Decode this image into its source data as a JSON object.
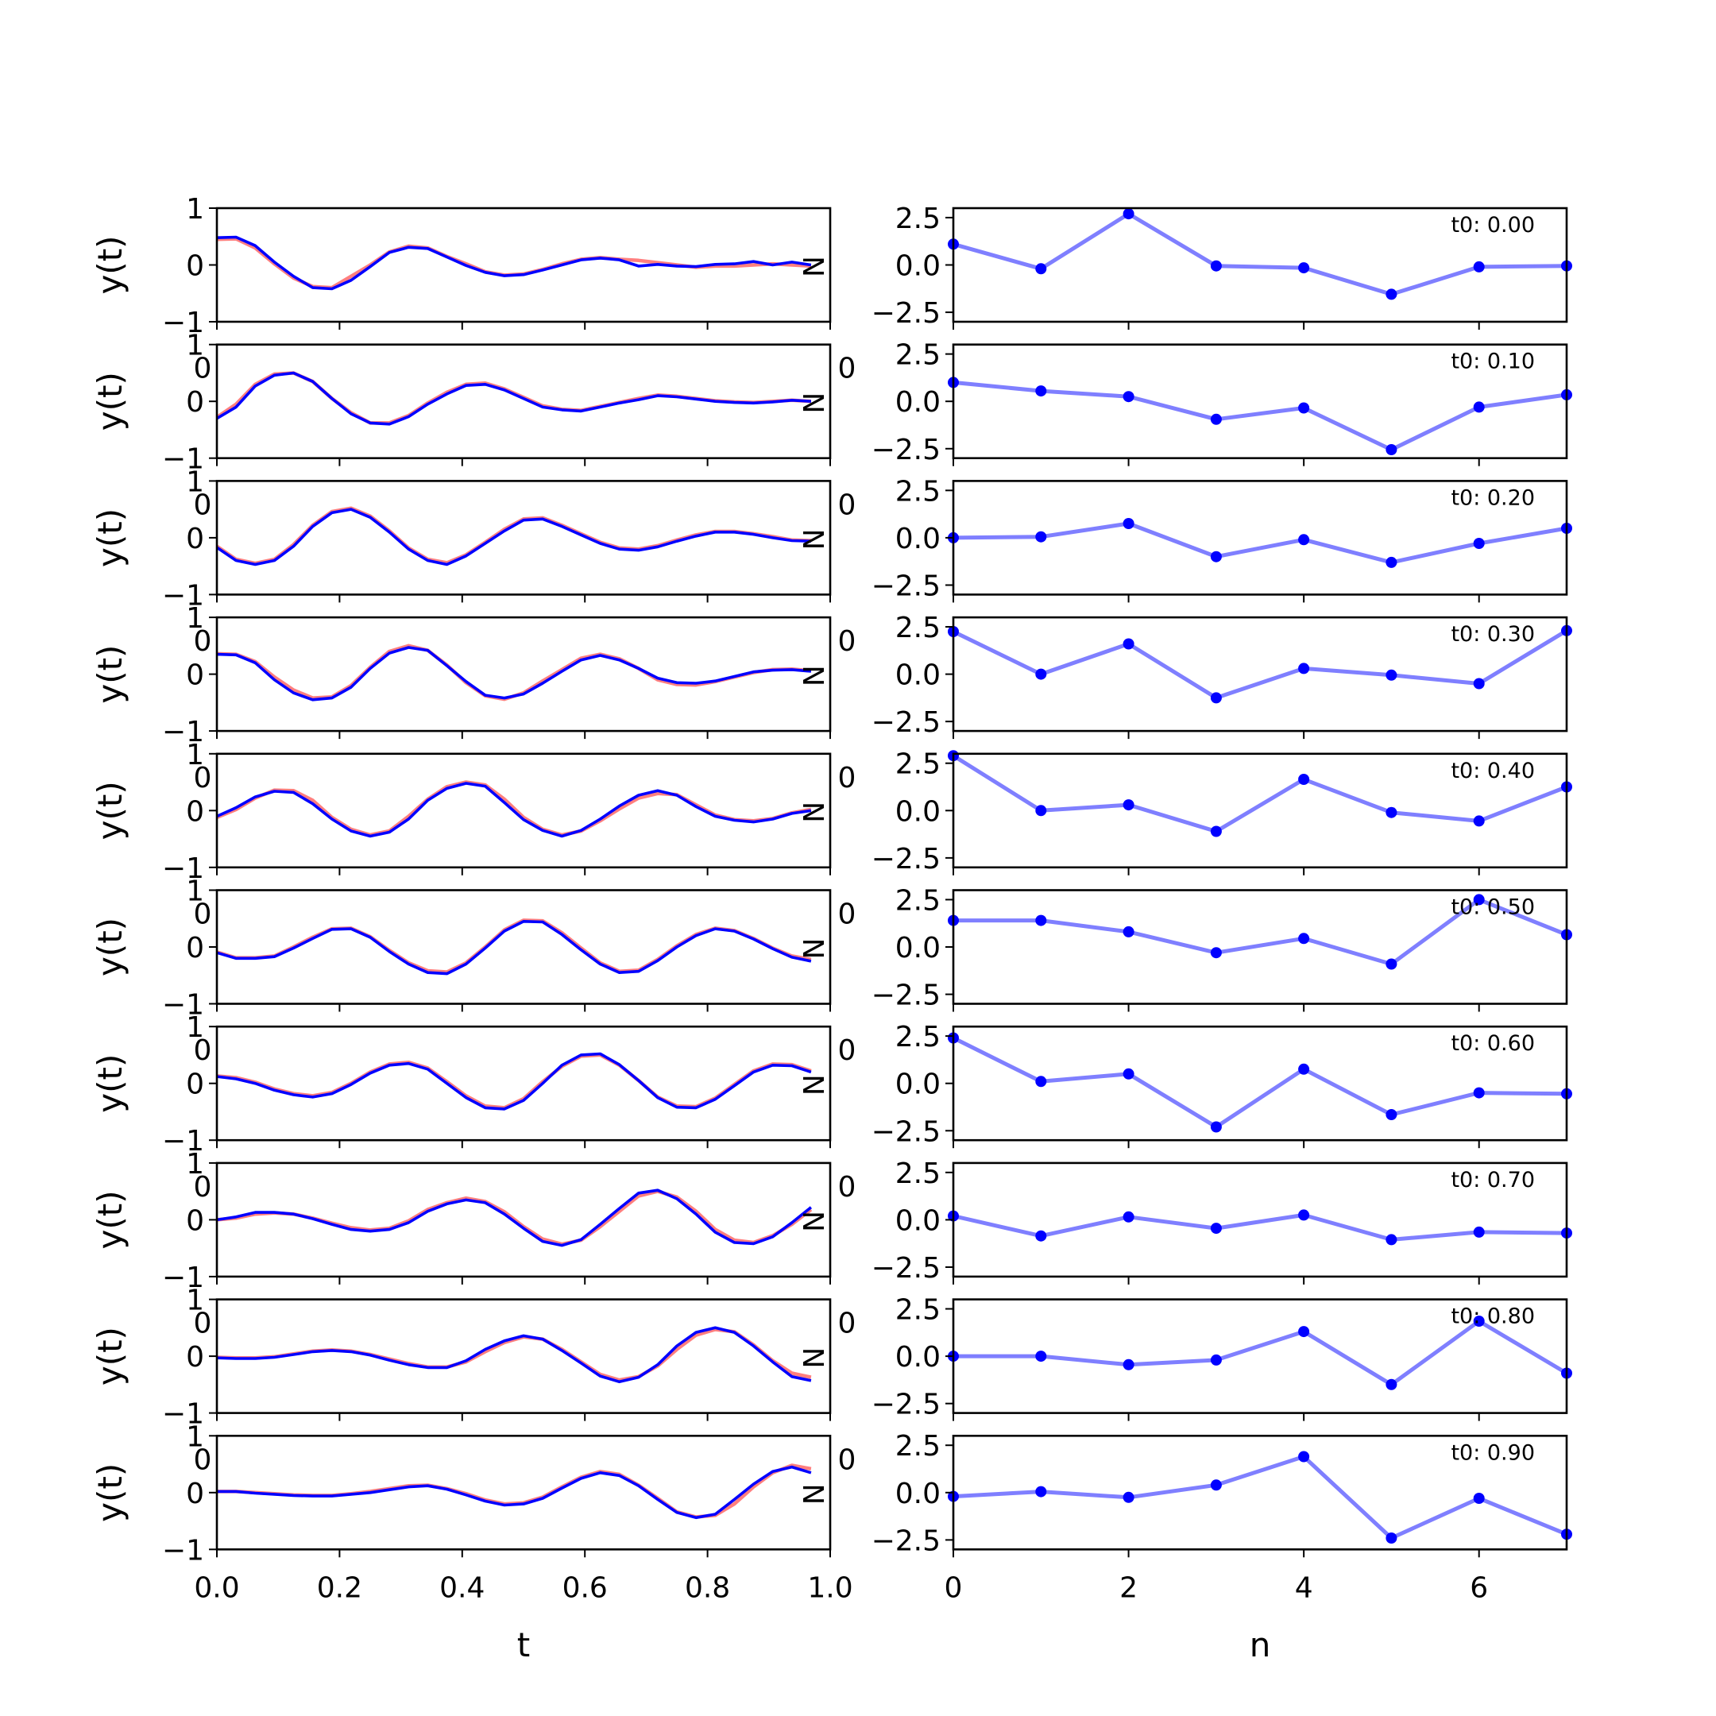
{
  "chart_data": {
    "type": "line",
    "rows": 10,
    "left": {
      "xlabel": "t",
      "ylabel": "y(t)",
      "xlim": [
        0,
        1
      ],
      "ylim": [
        -1,
        1
      ],
      "xticks": [
        "0.0",
        "0.2",
        "0.4",
        "0.6",
        "0.8",
        "1.0"
      ],
      "yticks": [
        "1",
        "0",
        "−1"
      ],
      "stray_tick_label": "0",
      "right_marker": "N",
      "t": [
        0.0,
        0.03125,
        0.0625,
        0.09375,
        0.125,
        0.15625,
        0.1875,
        0.21875,
        0.25,
        0.28125,
        0.3125,
        0.34375,
        0.375,
        0.40625,
        0.4375,
        0.46875,
        0.5,
        0.53125,
        0.5625,
        0.59375,
        0.625,
        0.65625,
        0.6875,
        0.71875,
        0.75,
        0.78125,
        0.8125,
        0.84375,
        0.875,
        0.90625,
        0.9375,
        0.96875
      ],
      "series": [
        {
          "blue": [
            0.48,
            0.49,
            0.34,
            0.05,
            -0.2,
            -0.4,
            -0.42,
            -0.27,
            -0.03,
            0.22,
            0.31,
            0.29,
            0.14,
            -0.01,
            -0.13,
            -0.19,
            -0.17,
            -0.09,
            0.0,
            0.09,
            0.12,
            0.09,
            -0.02,
            0.01,
            -0.02,
            -0.03,
            0.01,
            0.02,
            0.06,
            0.0,
            0.05,
            0.0
          ],
          "red": [
            0.45,
            0.46,
            0.3,
            0.02,
            -0.23,
            -0.38,
            -0.4,
            -0.2,
            0.0,
            0.23,
            0.33,
            0.3,
            0.15,
            0.02,
            -0.12,
            -0.18,
            -0.16,
            -0.08,
            0.02,
            0.1,
            0.13,
            0.1,
            0.08,
            0.04,
            0.0,
            -0.04,
            -0.02,
            -0.02,
            0.0,
            0.02,
            0.0,
            -0.02
          ]
        },
        {
          "blue": [
            -0.3,
            -0.1,
            0.27,
            0.46,
            0.5,
            0.35,
            0.05,
            -0.22,
            -0.38,
            -0.4,
            -0.27,
            -0.05,
            0.13,
            0.28,
            0.3,
            0.2,
            0.05,
            -0.1,
            -0.15,
            -0.17,
            -0.1,
            -0.03,
            0.03,
            0.1,
            0.08,
            0.04,
            0.0,
            -0.02,
            -0.03,
            -0.01,
            0.02,
            0.0
          ],
          "red": [
            -0.28,
            -0.05,
            0.3,
            0.48,
            0.5,
            0.35,
            0.05,
            -0.2,
            -0.38,
            -0.38,
            -0.25,
            -0.03,
            0.16,
            0.3,
            0.32,
            0.22,
            0.07,
            -0.08,
            -0.14,
            -0.16,
            -0.09,
            -0.02,
            0.05,
            0.11,
            0.09,
            0.05,
            0.01,
            -0.01,
            -0.02,
            0.0,
            0.02,
            0.0
          ]
        },
        {
          "blue": [
            -0.17,
            -0.4,
            -0.47,
            -0.4,
            -0.15,
            0.2,
            0.44,
            0.5,
            0.36,
            0.1,
            -0.2,
            -0.4,
            -0.47,
            -0.32,
            -0.1,
            0.12,
            0.31,
            0.33,
            0.2,
            0.05,
            -0.1,
            -0.2,
            -0.22,
            -0.16,
            -0.06,
            0.03,
            0.1,
            0.1,
            0.06,
            0.0,
            -0.05,
            -0.06
          ],
          "red": [
            -0.15,
            -0.38,
            -0.45,
            -0.38,
            -0.12,
            0.22,
            0.46,
            0.52,
            0.38,
            0.12,
            -0.18,
            -0.38,
            -0.44,
            -0.3,
            -0.08,
            0.15,
            0.33,
            0.35,
            0.22,
            0.07,
            -0.08,
            -0.18,
            -0.2,
            -0.14,
            -0.04,
            0.05,
            0.11,
            0.11,
            0.07,
            0.02,
            -0.04,
            -0.05
          ]
        },
        {
          "blue": [
            0.35,
            0.34,
            0.2,
            -0.1,
            -0.33,
            -0.45,
            -0.42,
            -0.23,
            0.1,
            0.37,
            0.47,
            0.42,
            0.15,
            -0.13,
            -0.37,
            -0.42,
            -0.35,
            -0.16,
            0.05,
            0.25,
            0.33,
            0.25,
            0.1,
            -0.07,
            -0.15,
            -0.16,
            -0.12,
            -0.04,
            0.04,
            0.07,
            0.08,
            0.05
          ],
          "red": [
            0.36,
            0.35,
            0.22,
            -0.05,
            -0.28,
            -0.42,
            -0.4,
            -0.2,
            0.12,
            0.4,
            0.5,
            0.42,
            0.16,
            -0.15,
            -0.38,
            -0.44,
            -0.33,
            -0.12,
            0.08,
            0.28,
            0.35,
            0.27,
            0.1,
            -0.1,
            -0.18,
            -0.19,
            -0.13,
            -0.05,
            0.03,
            0.08,
            0.09,
            0.06
          ]
        },
        {
          "blue": [
            -0.1,
            0.05,
            0.24,
            0.34,
            0.32,
            0.12,
            -0.15,
            -0.36,
            -0.45,
            -0.38,
            -0.15,
            0.18,
            0.39,
            0.48,
            0.43,
            0.14,
            -0.16,
            -0.35,
            -0.45,
            -0.35,
            -0.15,
            0.08,
            0.27,
            0.35,
            0.27,
            0.07,
            -0.1,
            -0.17,
            -0.2,
            -0.15,
            -0.05,
            0.0
          ],
          "red": [
            -0.12,
            0.02,
            0.22,
            0.36,
            0.35,
            0.18,
            -0.12,
            -0.33,
            -0.43,
            -0.36,
            -0.1,
            0.2,
            0.42,
            0.5,
            0.45,
            0.2,
            -0.12,
            -0.33,
            -0.43,
            -0.36,
            -0.18,
            0.03,
            0.22,
            0.3,
            0.28,
            0.1,
            -0.08,
            -0.16,
            -0.18,
            -0.14,
            -0.04,
            0.02
          ]
        },
        {
          "blue": [
            -0.1,
            -0.2,
            -0.2,
            -0.17,
            -0.02,
            0.15,
            0.31,
            0.32,
            0.17,
            -0.08,
            -0.3,
            -0.45,
            -0.47,
            -0.3,
            -0.02,
            0.28,
            0.45,
            0.44,
            0.22,
            -0.05,
            -0.3,
            -0.45,
            -0.43,
            -0.24,
            0.0,
            0.2,
            0.32,
            0.28,
            0.14,
            -0.03,
            -0.18,
            -0.25
          ],
          "red": [
            -0.09,
            -0.19,
            -0.19,
            -0.16,
            0.0,
            0.17,
            0.32,
            0.33,
            0.18,
            -0.06,
            -0.28,
            -0.42,
            -0.44,
            -0.28,
            0.0,
            0.3,
            0.47,
            0.46,
            0.25,
            -0.02,
            -0.28,
            -0.43,
            -0.41,
            -0.22,
            0.02,
            0.22,
            0.33,
            0.29,
            0.15,
            -0.02,
            -0.16,
            -0.22
          ]
        },
        {
          "blue": [
            0.12,
            0.08,
            0.0,
            -0.12,
            -0.2,
            -0.24,
            -0.18,
            -0.02,
            0.18,
            0.32,
            0.35,
            0.25,
            0.0,
            -0.25,
            -0.43,
            -0.45,
            -0.3,
            0.0,
            0.32,
            0.5,
            0.52,
            0.33,
            0.05,
            -0.25,
            -0.42,
            -0.43,
            -0.28,
            -0.04,
            0.2,
            0.32,
            0.31,
            0.2
          ],
          "red": [
            0.13,
            0.1,
            0.02,
            -0.1,
            -0.18,
            -0.22,
            -0.16,
            0.0,
            0.2,
            0.34,
            0.37,
            0.27,
            0.03,
            -0.22,
            -0.4,
            -0.43,
            -0.27,
            0.03,
            0.3,
            0.48,
            0.5,
            0.32,
            0.05,
            -0.24,
            -0.4,
            -0.41,
            -0.26,
            -0.02,
            0.22,
            0.34,
            0.33,
            0.22
          ]
        },
        {
          "blue": [
            0.0,
            0.05,
            0.13,
            0.13,
            0.1,
            0.02,
            -0.08,
            -0.17,
            -0.2,
            -0.17,
            -0.05,
            0.15,
            0.28,
            0.35,
            0.3,
            0.1,
            -0.15,
            -0.38,
            -0.45,
            -0.35,
            -0.08,
            0.2,
            0.47,
            0.52,
            0.37,
            0.1,
            -0.22,
            -0.4,
            -0.42,
            -0.3,
            -0.05,
            0.22
          ],
          "red": [
            0.0,
            0.03,
            0.1,
            0.12,
            0.1,
            0.03,
            -0.06,
            -0.14,
            -0.18,
            -0.15,
            -0.02,
            0.18,
            0.3,
            0.38,
            0.32,
            0.14,
            -0.12,
            -0.34,
            -0.43,
            -0.36,
            -0.12,
            0.15,
            0.42,
            0.5,
            0.4,
            0.15,
            -0.17,
            -0.36,
            -0.4,
            -0.28,
            -0.08,
            0.18
          ]
        },
        {
          "blue": [
            -0.03,
            -0.04,
            -0.04,
            -0.02,
            0.03,
            0.08,
            0.1,
            0.08,
            0.02,
            -0.07,
            -0.15,
            -0.2,
            -0.2,
            -0.08,
            0.12,
            0.27,
            0.36,
            0.3,
            0.1,
            -0.12,
            -0.35,
            -0.45,
            -0.37,
            -0.15,
            0.18,
            0.42,
            0.5,
            0.42,
            0.18,
            -0.1,
            -0.36,
            -0.43
          ],
          "red": [
            -0.02,
            -0.03,
            -0.03,
            -0.01,
            0.04,
            0.09,
            0.11,
            0.09,
            0.03,
            -0.05,
            -0.13,
            -0.19,
            -0.19,
            -0.1,
            0.08,
            0.24,
            0.34,
            0.3,
            0.12,
            -0.1,
            -0.32,
            -0.42,
            -0.36,
            -0.17,
            0.12,
            0.37,
            0.47,
            0.43,
            0.2,
            -0.08,
            -0.3,
            -0.37
          ]
        },
        {
          "blue": [
            0.02,
            0.02,
            -0.01,
            -0.03,
            -0.05,
            -0.06,
            -0.06,
            -0.03,
            0.0,
            0.05,
            0.1,
            0.12,
            0.06,
            -0.04,
            -0.15,
            -0.22,
            -0.2,
            -0.1,
            0.08,
            0.25,
            0.35,
            0.3,
            0.12,
            -0.12,
            -0.35,
            -0.44,
            -0.38,
            -0.12,
            0.15,
            0.37,
            0.45,
            0.35
          ],
          "red": [
            0.02,
            0.02,
            0.0,
            -0.02,
            -0.04,
            -0.05,
            -0.05,
            -0.02,
            0.02,
            0.07,
            0.12,
            0.13,
            0.07,
            -0.02,
            -0.13,
            -0.2,
            -0.18,
            -0.08,
            0.1,
            0.27,
            0.37,
            0.32,
            0.13,
            -0.1,
            -0.34,
            -0.43,
            -0.4,
            -0.2,
            0.1,
            0.35,
            0.48,
            0.42
          ]
        }
      ]
    },
    "right": {
      "xlabel": "n",
      "xlim": [
        0,
        7
      ],
      "ylim": [
        -3,
        3
      ],
      "xticks": [
        0,
        2,
        4,
        6
      ],
      "yticks": [
        "2.5",
        "0.0",
        "−2.5"
      ],
      "stray_tick_label": "0",
      "n": [
        0,
        1,
        2,
        3,
        4,
        5,
        6,
        7
      ],
      "series": [
        {
          "annotation": "t0: 0.00",
          "values": [
            1.1,
            -0.2,
            2.7,
            -0.05,
            -0.15,
            -1.55,
            -0.1,
            -0.05
          ]
        },
        {
          "annotation": "t0: 0.10",
          "values": [
            1.0,
            0.55,
            0.25,
            -0.95,
            -0.35,
            -2.55,
            -0.3,
            0.35
          ]
        },
        {
          "annotation": "t0: 0.20",
          "values": [
            0.0,
            0.05,
            0.75,
            -1.0,
            -0.1,
            -1.3,
            -0.3,
            0.5
          ]
        },
        {
          "annotation": "t0: 0.30",
          "values": [
            2.25,
            0.0,
            1.6,
            -1.25,
            0.3,
            -0.05,
            -0.5,
            2.3
          ]
        },
        {
          "annotation": "t0: 0.40",
          "values": [
            2.9,
            0.0,
            0.3,
            -1.1,
            1.65,
            -0.1,
            -0.55,
            1.25
          ]
        },
        {
          "annotation": "t0: 0.50",
          "values": [
            1.4,
            1.4,
            0.8,
            -0.3,
            0.45,
            -0.9,
            2.5,
            0.65
          ]
        },
        {
          "annotation": "t0: 0.60",
          "values": [
            2.4,
            0.1,
            0.5,
            -2.3,
            0.75,
            -1.65,
            -0.5,
            -0.55
          ]
        },
        {
          "annotation": "t0: 0.70",
          "values": [
            0.2,
            -0.85,
            0.15,
            -0.45,
            0.25,
            -1.05,
            -0.65,
            -0.7
          ]
        },
        {
          "annotation": "t0: 0.80",
          "values": [
            0.0,
            0.0,
            -0.45,
            -0.2,
            1.3,
            -1.5,
            1.85,
            -0.9
          ]
        },
        {
          "annotation": "t0: 0.90",
          "values": [
            -0.2,
            0.05,
            -0.25,
            0.4,
            1.9,
            -2.4,
            -0.3,
            -2.2
          ]
        }
      ]
    }
  }
}
